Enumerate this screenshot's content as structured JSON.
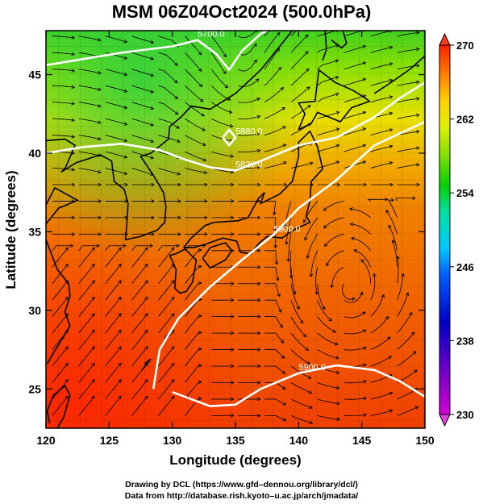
{
  "title": "MSM 06Z04Oct2024 (500.0hPa)",
  "chart_data": {
    "type": "heatmap",
    "xlabel": "Longitude (degrees)",
    "ylabel": "Latitude  (degrees)",
    "xlim": [
      120,
      150
    ],
    "ylim": [
      22.5,
      47.8
    ],
    "x_ticks": [
      "120",
      "125",
      "130",
      "135",
      "140",
      "145",
      "150"
    ],
    "y_ticks": [
      "25",
      "30",
      "35",
      "40",
      "45"
    ],
    "colorbar": {
      "min": 230,
      "max": 270,
      "tick_labels": [
        "270",
        "262",
        "254",
        "246",
        "238",
        "230"
      ],
      "tick_values": [
        270,
        262,
        254,
        246,
        238,
        230
      ],
      "colors": [
        "#d400d4",
        "#7000c8",
        "#0000c8",
        "#0050ff",
        "#00c8ff",
        "#00e0a0",
        "#00d000",
        "#80e000",
        "#e0f000",
        "#ffd000",
        "#ff8000",
        "#ff2000"
      ]
    },
    "contours": [
      {
        "label": "5700.0",
        "points": [
          [
            120,
            45.6
          ],
          [
            123,
            46.0
          ],
          [
            126,
            46.4
          ],
          [
            128,
            46.6
          ],
          [
            130,
            46.8
          ],
          [
            132,
            47.2
          ],
          [
            133.5,
            46.3
          ],
          [
            134.5,
            45.3
          ],
          [
            135.5,
            46.5
          ],
          [
            137,
            47.6
          ],
          [
            138,
            48.0
          ]
        ]
      },
      {
        "label": "5820.0",
        "points": [
          [
            120,
            40.0
          ],
          [
            123,
            40.4
          ],
          [
            126,
            40.6
          ],
          [
            129,
            40.2
          ],
          [
            131,
            39.6
          ],
          [
            133,
            39.1
          ],
          [
            135,
            38.9
          ],
          [
            137,
            39.5
          ],
          [
            140,
            40.5
          ],
          [
            143,
            41.0
          ],
          [
            146,
            42.3
          ],
          [
            148,
            43.5
          ],
          [
            150,
            44.5
          ]
        ]
      },
      {
        "label": "5880.0",
        "points": [
          [
            134,
            41.0
          ],
          [
            134.5,
            41.5
          ],
          [
            135,
            41.0
          ],
          [
            134.5,
            40.5
          ],
          [
            134,
            41.0
          ]
        ]
      },
      {
        "label": "5900.0",
        "points": [
          [
            128.5,
            25.0
          ],
          [
            129,
            27.5
          ],
          [
            130.5,
            29.5
          ],
          [
            133,
            31.5
          ],
          [
            135.5,
            33.2
          ],
          [
            138,
            34.8
          ],
          [
            140,
            36.5
          ],
          [
            143,
            38.3
          ],
          [
            146,
            40.5
          ],
          [
            150,
            42.0
          ]
        ]
      },
      {
        "label": "5900.0",
        "points": [
          [
            130,
            24.8
          ],
          [
            133,
            23.9
          ],
          [
            135,
            24.0
          ],
          [
            137,
            25.0
          ],
          [
            140,
            26.0
          ],
          [
            143,
            26.5
          ],
          [
            146,
            26.2
          ],
          [
            148,
            25.5
          ],
          [
            150,
            24.5
          ]
        ]
      }
    ],
    "temperature_field_note": "",
    "wind": "streamlines"
  },
  "credits": {
    "line1": "Drawing by DCL (https://www.gfd–dennou.org/library/dcl/)",
    "line2": "Data from http://database.rish.kyoto–u.ac.jp/arch/jmadata/"
  }
}
